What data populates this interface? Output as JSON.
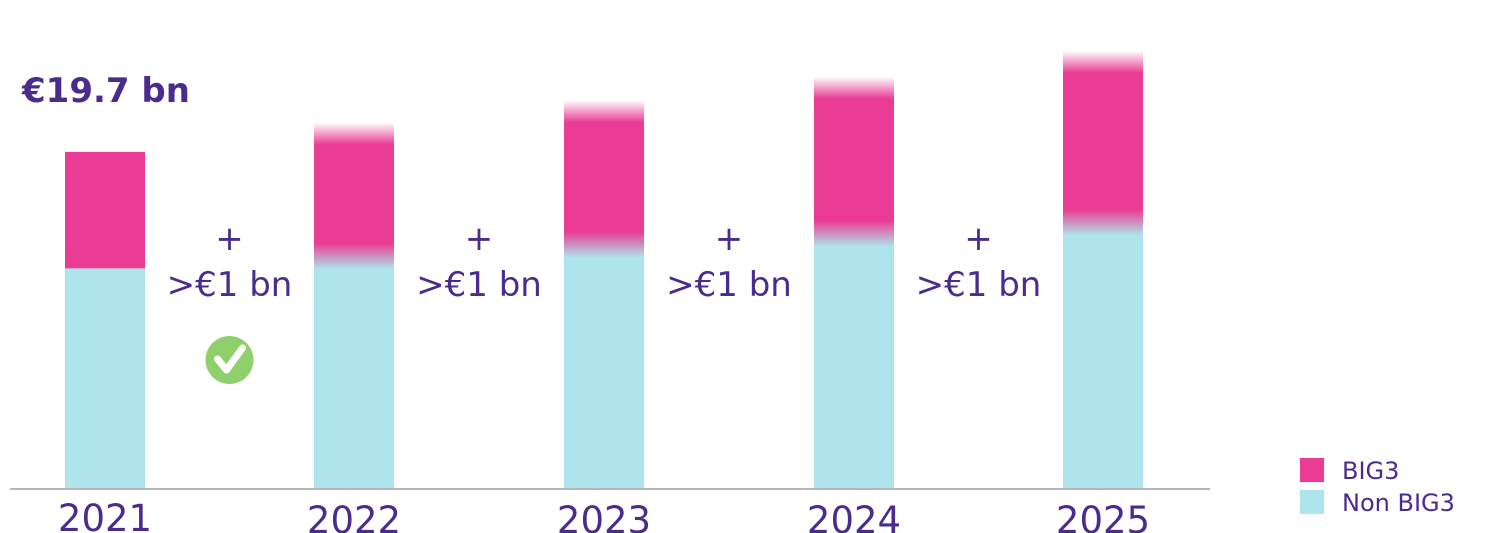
{
  "chart_data": {
    "type": "bar",
    "stacked": true,
    "categories": [
      "2021",
      "2022",
      "2023",
      "2024",
      "2025"
    ],
    "series": [
      {
        "name": "Non BIG3",
        "color": "#aee5ec",
        "values": [
          19.7,
          20.7,
          21.7,
          22.7,
          23.7
        ]
      },
      {
        "name": "BIG3",
        "color": "#ea3c94",
        "values": [
          10.4,
          11.3,
          12.3,
          13.4,
          14.7
        ]
      }
    ],
    "total_label": "€19.7 bn",
    "increments": [
      {
        "plus": "+",
        "text": ">€1 bn",
        "checked": true
      },
      {
        "plus": "+",
        "text": ">€1 bn",
        "checked": false
      },
      {
        "plus": "+",
        "text": ">€1 bn",
        "checked": false
      },
      {
        "plus": "+",
        "text": ">€1 bn",
        "checked": false
      }
    ],
    "legend": {
      "position": "bottom-right",
      "items": [
        "BIG3",
        "Non BIG3"
      ]
    },
    "projected": [
      false,
      true,
      true,
      true,
      true
    ],
    "check_icon": "check-circle-icon",
    "text_color": "#4a2c8f",
    "check_color": "#8fcf6c",
    "axis_color": "#b8b8b8"
  }
}
